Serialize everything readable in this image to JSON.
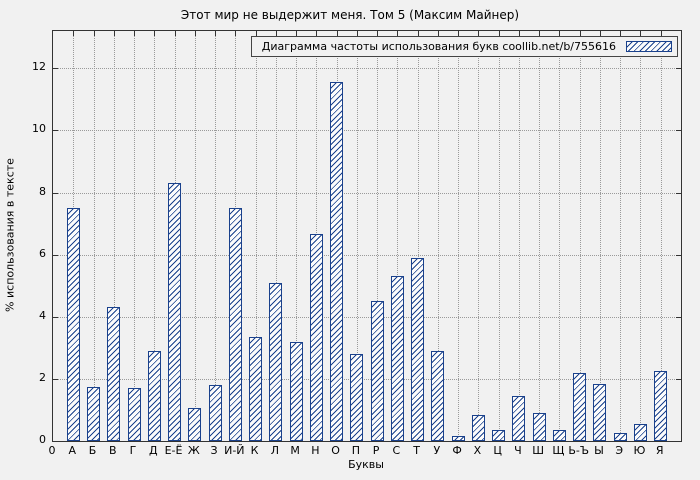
{
  "chart_data": {
    "type": "bar",
    "title": "Этот мир не выдержит меня. Том 5 (Максим Майнер)",
    "legend": "Диаграмма частоты использования букв coollib.net/b/755616",
    "xlabel": "Буквы",
    "ylabel": "% использования в тексте",
    "origin_label": "0",
    "yticks": [
      0,
      2,
      4,
      6,
      8,
      10,
      12
    ],
    "ylim": [
      0,
      13.2
    ],
    "grid": true,
    "bar_color": "#1a418c",
    "categories": [
      "А",
      "Б",
      "В",
      "Г",
      "Д",
      "Е-Ё",
      "Ж",
      "З",
      "И-Й",
      "К",
      "Л",
      "М",
      "Н",
      "О",
      "П",
      "Р",
      "С",
      "Т",
      "У",
      "Ф",
      "Х",
      "Ц",
      "Ч",
      "Ш",
      "Щ",
      "Ь-Ъ",
      "Ы",
      "Э",
      "Ю",
      "Я"
    ],
    "values": [
      7.5,
      1.75,
      4.3,
      1.7,
      2.9,
      8.3,
      1.05,
      1.8,
      7.5,
      3.35,
      5.1,
      3.2,
      6.65,
      11.55,
      2.8,
      4.5,
      5.3,
      5.9,
      2.9,
      0.15,
      0.85,
      0.35,
      1.45,
      0.9,
      0.35,
      2.2,
      1.85,
      0.25,
      0.55,
      2.25
    ]
  }
}
